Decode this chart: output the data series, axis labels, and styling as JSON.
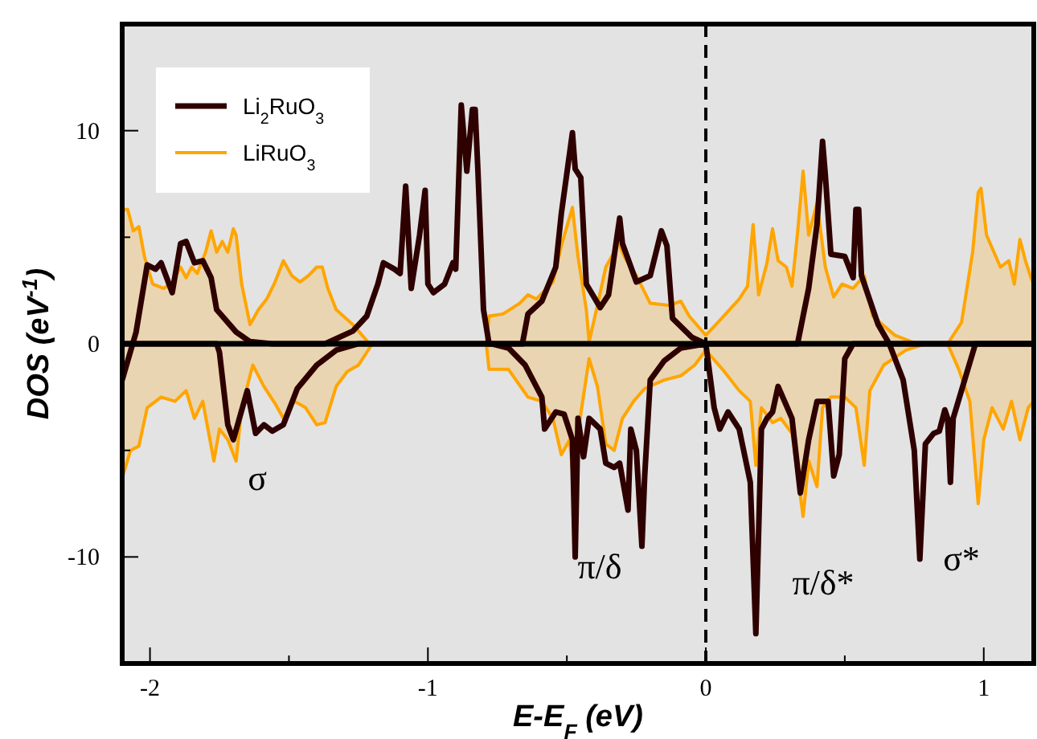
{
  "chart_data": {
    "type": "line",
    "xlabel": "E-E$_{F}$ (eV)",
    "ylabel": "DOS (eV$^{-1}$)",
    "xlim": [
      -2.1,
      1.18
    ],
    "ylim": [
      -15,
      15
    ],
    "xticks": [
      -2,
      {
        "value": -1.5,
        "label": null
      },
      -1,
      {
        "value": -0.5,
        "label": null
      },
      0,
      {
        "value": 0.5,
        "label": null
      },
      1
    ],
    "yticks": [
      -10,
      {
        "value": -5,
        "label": null
      },
      0,
      {
        "value": 5,
        "label": null
      },
      10
    ],
    "grid": false,
    "legend": "top left",
    "marker": "none",
    "ref_lines": [
      {
        "axis": "y",
        "value": 0,
        "label": null,
        "color": "#000000",
        "line_style": "solid"
      },
      {
        "axis": "x",
        "value": 0,
        "label": null,
        "color": "#000000",
        "line_style": "dashed"
      }
    ],
    "annotations": [
      "σ",
      "π/δ",
      "π/δ*",
      "σ*"
    ],
    "series": [
      {
        "name": "Li$_{2}$RuO$_{3}$",
        "color": "#2e0000",
        "x": [
          -2.1,
          -2.05,
          -2.01,
          -1.98,
          -1.96,
          -1.92,
          -1.89,
          -1.87,
          -1.84,
          -1.81,
          -1.78,
          -1.76,
          -1.69,
          -1.64,
          -1.56,
          -1.37,
          -1.27,
          -1.22,
          -1.18,
          -1.16,
          -1.12,
          -1.1,
          -1.08,
          -1.06,
          -1.03,
          -1.01,
          -1.0,
          -0.98,
          -0.94,
          -0.91,
          -0.9,
          -0.88,
          -0.86,
          -0.84,
          -0.83,
          -0.82,
          -0.8,
          -0.78,
          -0.66,
          -0.64,
          -0.59,
          -0.54,
          -0.52,
          -0.48,
          -0.47,
          -0.45,
          -0.43,
          -0.38,
          -0.35,
          -0.31,
          -0.3,
          -0.25,
          -0.2,
          -0.16,
          -0.14,
          -0.12,
          -0.05,
          0.0,
          0.33,
          0.37,
          0.4,
          0.42,
          0.43,
          0.45,
          0.5,
          0.53,
          0.54,
          0.55,
          0.56,
          0.62,
          0.66,
          1.18
        ],
        "values": [
          -1.7,
          0.55,
          3.7,
          3.5,
          3.8,
          2.4,
          4.7,
          4.8,
          3.8,
          3.9,
          3.1,
          1.6,
          0.55,
          0.1,
          0,
          0,
          0.6,
          1.3,
          2.8,
          3.8,
          3.5,
          3.3,
          7.4,
          2.6,
          5.1,
          7.2,
          2.8,
          2.4,
          2.8,
          3.8,
          3.5,
          11.2,
          8.1,
          11.0,
          11.0,
          8.1,
          1.6,
          0,
          0,
          1.4,
          2.0,
          3.6,
          6.1,
          9.9,
          8.2,
          7.8,
          2.8,
          1.7,
          2.3,
          5.9,
          4.7,
          2.9,
          3.2,
          5.3,
          4.6,
          1.2,
          0.3,
          0,
          0,
          2.6,
          5.6,
          9.5,
          7.9,
          4.2,
          4.1,
          3.1,
          6.3,
          6.3,
          3.2,
          0.9,
          0,
          0
        ]
      },
      {
        "color": "#2e0000",
        "x": [
          -2.1,
          -1.76,
          -1.75,
          -1.72,
          -1.7,
          -1.65,
          -1.62,
          -1.59,
          -1.56,
          -1.52,
          -1.47,
          -1.4,
          -1.33,
          -1.25,
          -0.77,
          -0.71,
          -0.65,
          -0.59,
          -0.58,
          -0.54,
          -0.51,
          -0.48,
          -0.47,
          -0.46,
          -0.44,
          -0.42,
          -0.38,
          -0.36,
          -0.33,
          -0.31,
          -0.28,
          -0.27,
          -0.25,
          -0.23,
          -0.22,
          -0.2,
          -0.15,
          -0.09,
          0.0,
          0.03,
          0.05,
          0.08,
          0.12,
          0.16,
          0.18,
          0.2,
          0.22,
          0.24,
          0.26,
          0.31,
          0.34,
          0.37,
          0.4,
          0.44,
          0.46,
          0.48,
          0.5,
          0.53,
          0.66,
          0.71,
          0.75,
          0.77,
          0.79,
          0.82,
          0.84,
          0.86,
          0.87,
          0.88,
          0.89,
          0.97,
          1.18
        ],
        "values": [
          0,
          0,
          -0.4,
          -3.8,
          -4.5,
          -2.2,
          -4.2,
          -3.8,
          -4.1,
          -3.8,
          -2.1,
          -1.0,
          -0.3,
          0,
          0,
          -0.2,
          -1.0,
          -2.5,
          -4.0,
          -3.2,
          -3.3,
          -4.5,
          -10.0,
          -3.5,
          -5.3,
          -3.5,
          -4.0,
          -5.6,
          -5.8,
          -5.6,
          -7.8,
          -4.0,
          -5.0,
          -9.5,
          -6.2,
          -1.7,
          -0.8,
          -0.2,
          0,
          -3.0,
          -4.0,
          -3.2,
          -4.0,
          -6.5,
          -13.6,
          -4.0,
          -3.5,
          -3.2,
          -2.0,
          -3.5,
          -7.0,
          -4.5,
          -2.7,
          -2.7,
          -6.2,
          -5.2,
          -0.7,
          0,
          0,
          -1.7,
          -5.0,
          -10.1,
          -4.7,
          -4.2,
          -4.1,
          -3.1,
          -3.5,
          -6.5,
          -3.5,
          0,
          0
        ]
      },
      {
        "name": "LiRuO$_{3}$",
        "type": "area",
        "color": "#ffa500",
        "x": [
          -2.1,
          -2.08,
          -2.06,
          -2.04,
          -2.02,
          -1.99,
          -1.95,
          -1.92,
          -1.89,
          -1.87,
          -1.85,
          -1.83,
          -1.8,
          -1.78,
          -1.76,
          -1.74,
          -1.72,
          -1.7,
          -1.69,
          -1.67,
          -1.64,
          -1.61,
          -1.58,
          -1.55,
          -1.52,
          -1.49,
          -1.46,
          -1.43,
          -1.4,
          -1.38,
          -1.36,
          -1.33,
          -1.27,
          -1.21,
          -0.79,
          -0.78,
          -0.73,
          -0.67,
          -0.64,
          -0.61,
          -0.55,
          -0.52,
          -0.48,
          -0.46,
          -0.43,
          -0.42,
          -0.39,
          -0.36,
          -0.33,
          -0.32,
          -0.29,
          -0.25,
          -0.2,
          -0.13,
          -0.09,
          -0.06,
          0.0,
          0.05,
          0.12,
          0.15,
          0.17,
          0.19,
          0.22,
          0.24,
          0.26,
          0.29,
          0.31,
          0.33,
          0.35,
          0.37,
          0.4,
          0.43,
          0.46,
          0.49,
          0.53,
          0.57,
          0.6,
          0.68,
          0.76,
          0.87,
          0.92,
          0.96,
          0.98,
          0.99,
          1.01,
          1.06,
          1.09,
          1.11,
          1.13,
          1.15,
          1.17,
          1.18
        ],
        "values": [
          6.3,
          6.3,
          5.3,
          5.5,
          4.1,
          2.8,
          2.6,
          2.9,
          3.6,
          3.1,
          3.6,
          3.3,
          4.3,
          5.3,
          4.3,
          4.8,
          4.3,
          5.4,
          5.1,
          2.8,
          0.9,
          1.6,
          2.1,
          2.9,
          3.9,
          3.2,
          2.9,
          3.2,
          3.6,
          3.6,
          2.6,
          1.6,
          0.9,
          0,
          0,
          1.3,
          1.4,
          1.9,
          2.3,
          2.1,
          2.9,
          4.6,
          6.4,
          4.1,
          1.6,
          0.1,
          1.8,
          3.6,
          4.3,
          4.9,
          4.0,
          3.2,
          1.9,
          1.8,
          2.0,
          1.3,
          0.4,
          1.1,
          2.1,
          2.7,
          5.6,
          2.3,
          3.8,
          5.4,
          3.9,
          3.6,
          2.7,
          5.2,
          8.1,
          5.1,
          6.6,
          3.6,
          2.2,
          2.8,
          2.6,
          3.2,
          1.3,
          0.4,
          0,
          0,
          1.0,
          4.3,
          7.1,
          7.3,
          5.1,
          3.6,
          3.9,
          2.8,
          4.9,
          3.9,
          3.1,
          2.8
        ]
      },
      {
        "type": "area",
        "color": "#ffa500",
        "x": [
          -2.1,
          -2.07,
          -2.04,
          -2.01,
          -1.96,
          -1.91,
          -1.87,
          -1.84,
          -1.81,
          -1.77,
          -1.75,
          -1.72,
          -1.69,
          -1.67,
          -1.63,
          -1.59,
          -1.55,
          -1.52,
          -1.48,
          -1.44,
          -1.4,
          -1.37,
          -1.33,
          -1.29,
          -1.25,
          -1.2,
          -0.79,
          -0.78,
          -0.71,
          -0.64,
          -0.59,
          -0.55,
          -0.52,
          -0.49,
          -0.48,
          -0.45,
          -0.42,
          -0.39,
          -0.36,
          -0.33,
          -0.3,
          -0.26,
          -0.22,
          -0.15,
          -0.09,
          -0.04,
          0.0,
          0.06,
          0.12,
          0.16,
          0.18,
          0.2,
          0.24,
          0.27,
          0.31,
          0.35,
          0.37,
          0.4,
          0.42,
          0.45,
          0.5,
          0.54,
          0.57,
          0.59,
          0.64,
          0.72,
          0.79,
          0.87,
          0.91,
          0.95,
          0.98,
          1.0,
          1.03,
          1.07,
          1.1,
          1.13,
          1.16,
          1.18
        ],
        "values": [
          -6.3,
          -5.0,
          -4.8,
          -3.0,
          -2.5,
          -2.7,
          -2.2,
          -3.5,
          -2.7,
          -5.5,
          -4.0,
          -4.5,
          -5.5,
          -3.0,
          -1.0,
          -2.0,
          -2.8,
          -3.5,
          -2.7,
          -3.0,
          -3.8,
          -3.7,
          -2.0,
          -1.3,
          -1.0,
          0,
          0,
          -1.2,
          -1.2,
          -2.5,
          -2.7,
          -3.5,
          -5.2,
          -4.5,
          -6.0,
          -3.3,
          -0.7,
          -2.0,
          -4.7,
          -5.0,
          -3.5,
          -2.7,
          -2.1,
          -1.7,
          -1.5,
          -1.0,
          -0.3,
          -1.2,
          -2.2,
          -2.7,
          -5.7,
          -3.0,
          -3.7,
          -3.5,
          -4.2,
          -8.1,
          -5.5,
          -6.7,
          -3.0,
          -2.5,
          -2.5,
          -3.0,
          -5.7,
          -2.2,
          -1.0,
          -0.3,
          0,
          0,
          -1.2,
          -2.7,
          -7.5,
          -4.5,
          -3.0,
          -4.0,
          -2.7,
          -4.5,
          -3.0,
          -2.7
        ]
      }
    ]
  }
}
